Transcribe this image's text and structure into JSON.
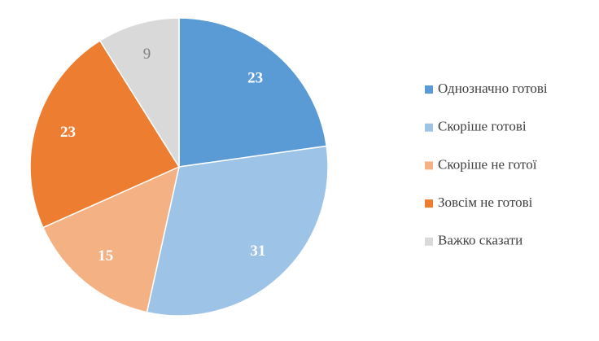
{
  "chart_data": {
    "type": "pie",
    "categories": [
      "Однозначно готові",
      "Скоріше готові",
      "Скоріше не готої",
      "Зовсім не готові",
      "Важко сказати"
    ],
    "values": [
      23,
      31,
      15,
      23,
      9
    ],
    "colors": [
      "#5b9bd5",
      "#9dc3e6",
      "#f4b183",
      "#ed7d31",
      "#d9d9d9"
    ],
    "legend": "right"
  }
}
